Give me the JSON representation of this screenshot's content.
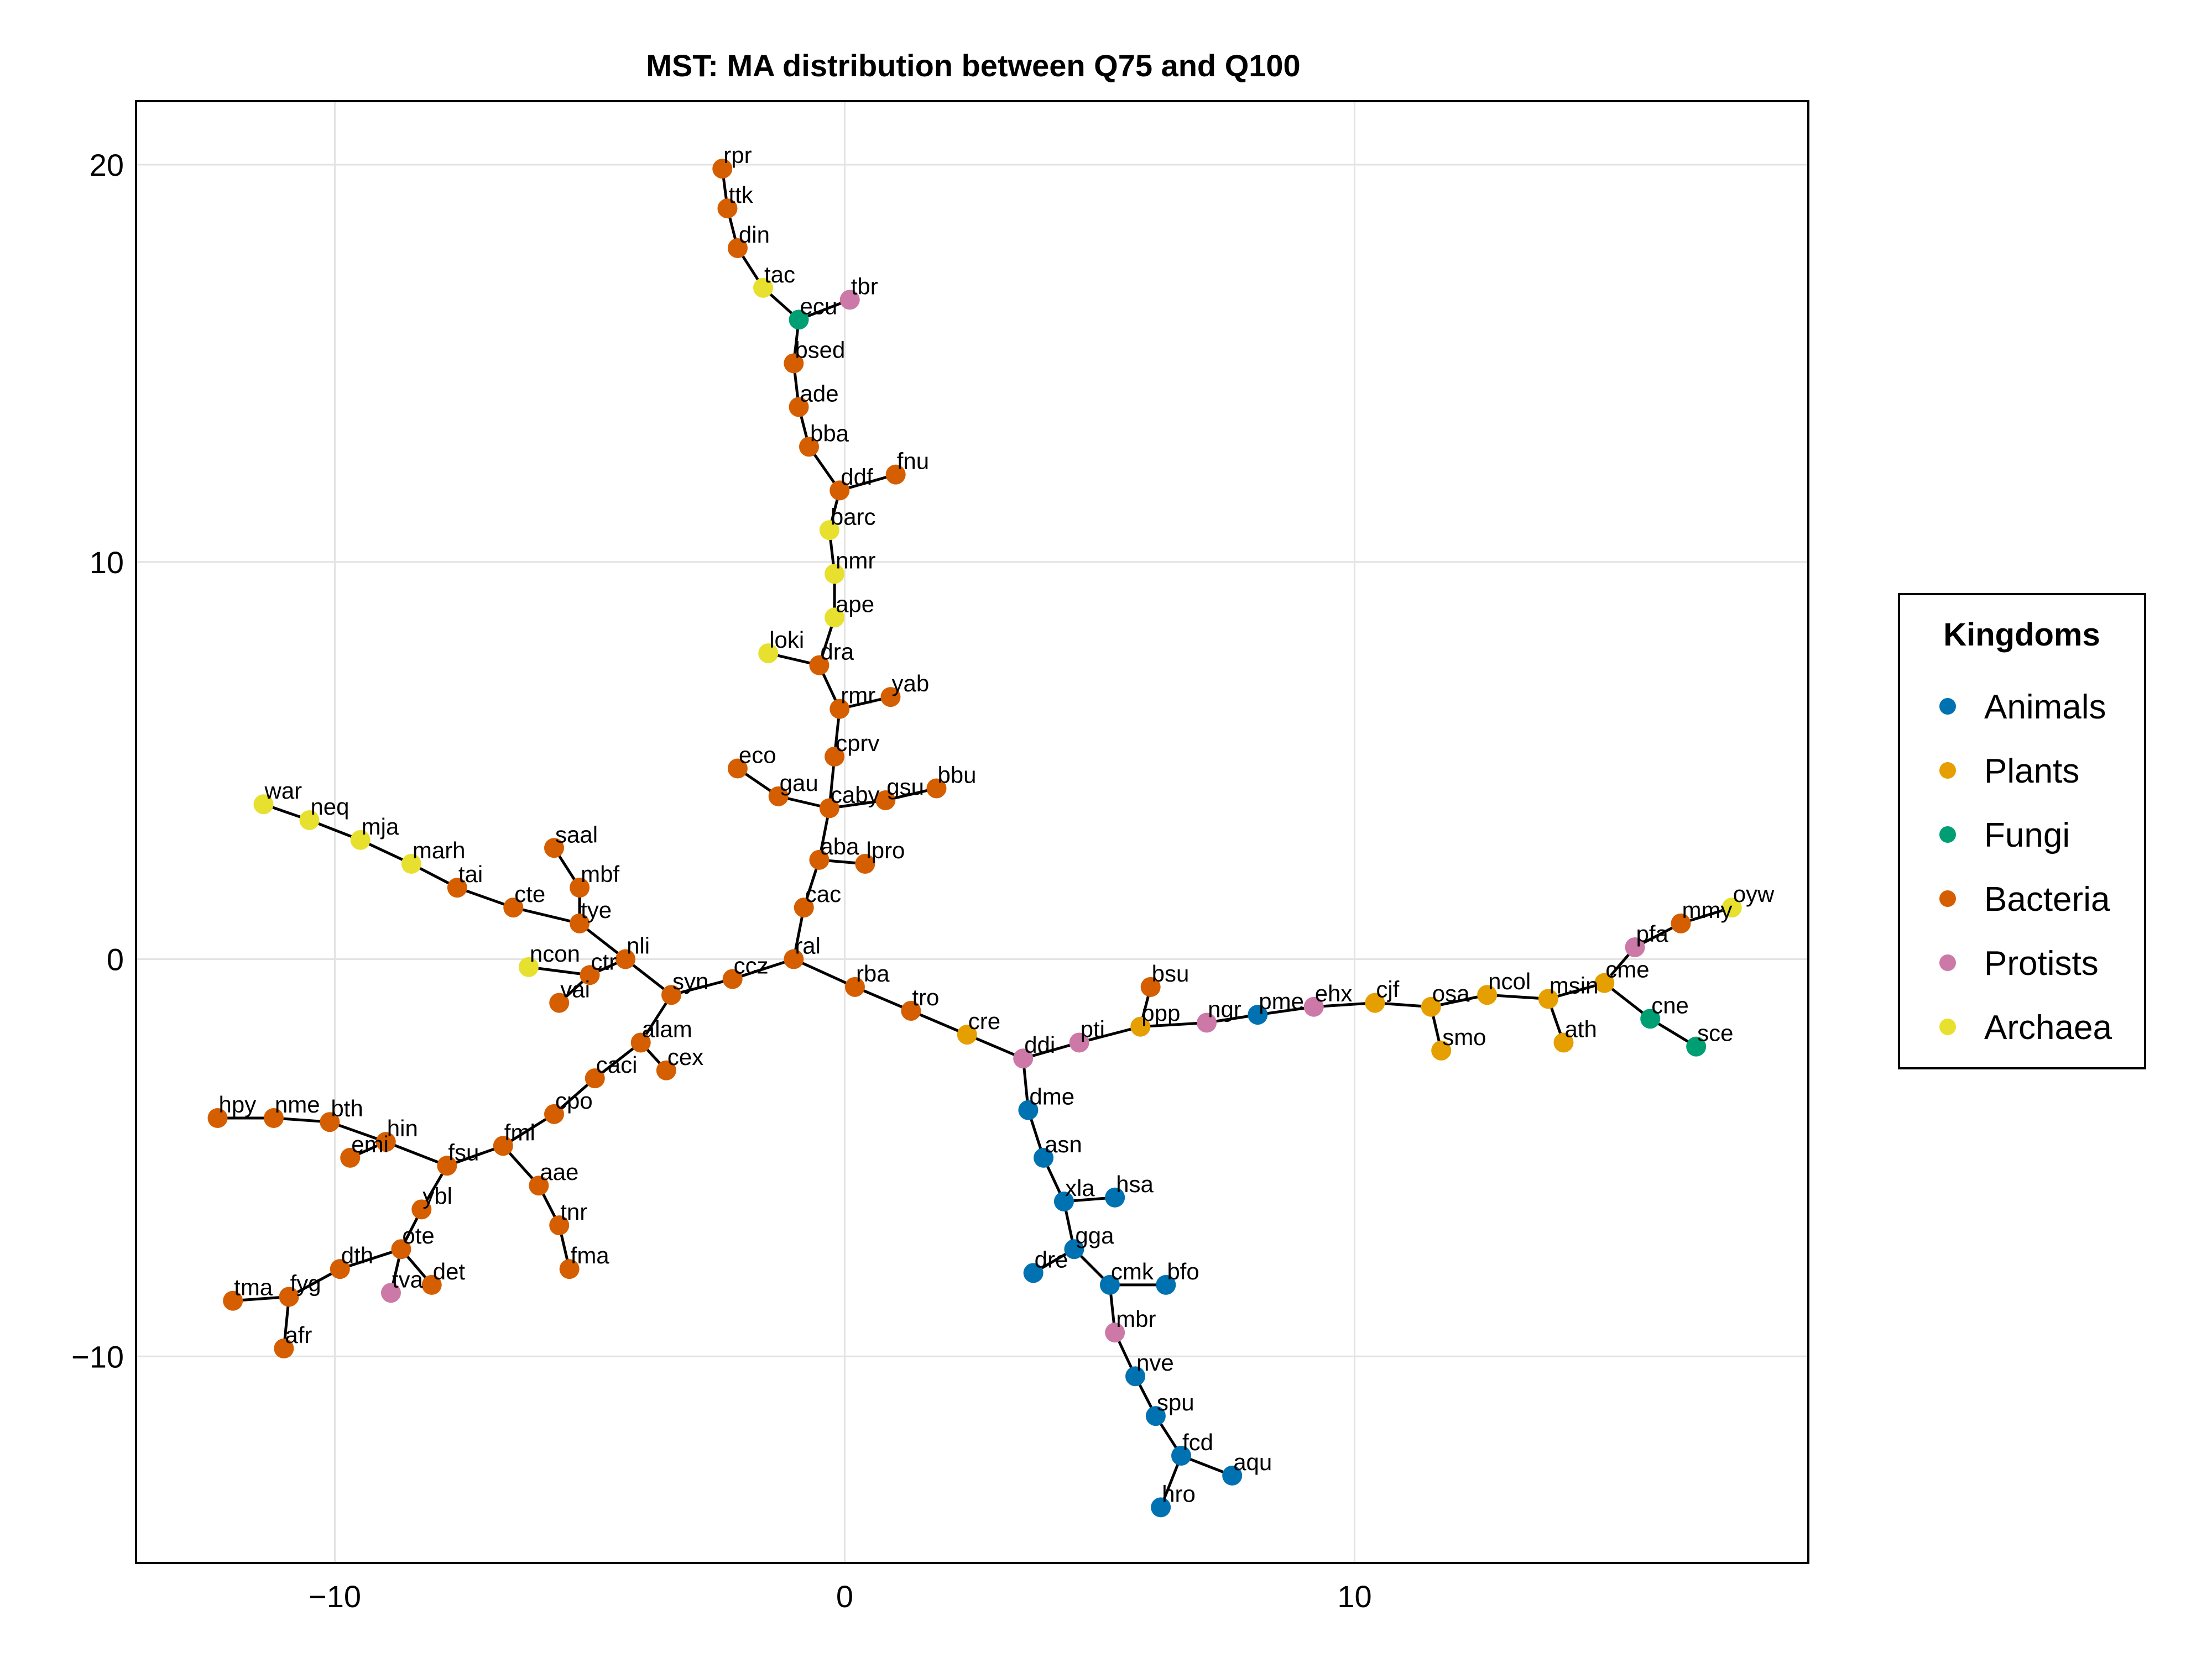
{
  "chart_data": {
    "type": "scatter",
    "title": "MST: MA distribution between Q75 and Q100",
    "xlabel": "",
    "ylabel": "",
    "xlim": [
      -13.9,
      18.9
    ],
    "ylim": [
      -15.2,
      21.6
    ],
    "xticks": [
      -10,
      0,
      10
    ],
    "yticks": [
      -10,
      0,
      10,
      20
    ],
    "xtick_labels": [
      "−10",
      "0",
      "10"
    ],
    "ytick_labels": [
      "−10",
      "0",
      "10",
      "20"
    ],
    "grid": true,
    "legend": {
      "title": "Kingdoms",
      "placement": "right",
      "entries": [
        {
          "name": "Animals",
          "color": "#0072b2"
        },
        {
          "name": "Plants",
          "color": "#e69f00"
        },
        {
          "name": "Fungi",
          "color": "#009e73"
        },
        {
          "name": "Bacteria",
          "color": "#d55e00"
        },
        {
          "name": "Protists",
          "color": "#cc79a7"
        },
        {
          "name": "Archaea",
          "color": "#e8e02e"
        }
      ]
    },
    "nodes": [
      {
        "id": "rpr",
        "x": -2.4,
        "y": 19.9,
        "kingdom": "Bacteria"
      },
      {
        "id": "ttk",
        "x": -2.3,
        "y": 18.9,
        "kingdom": "Bacteria"
      },
      {
        "id": "din",
        "x": -2.1,
        "y": 17.9,
        "kingdom": "Bacteria"
      },
      {
        "id": "tac",
        "x": -1.6,
        "y": 16.9,
        "kingdom": "Archaea"
      },
      {
        "id": "tbr",
        "x": 0.1,
        "y": 16.6,
        "kingdom": "Protists"
      },
      {
        "id": "ecu",
        "x": -0.9,
        "y": 16.1,
        "kingdom": "Fungi"
      },
      {
        "id": "bsed",
        "x": -1.0,
        "y": 15.0,
        "kingdom": "Bacteria"
      },
      {
        "id": "ade",
        "x": -0.9,
        "y": 13.9,
        "kingdom": "Bacteria"
      },
      {
        "id": "bba",
        "x": -0.7,
        "y": 12.9,
        "kingdom": "Bacteria"
      },
      {
        "id": "fnu",
        "x": 1.0,
        "y": 12.2,
        "kingdom": "Bacteria"
      },
      {
        "id": "ddf",
        "x": -0.1,
        "y": 11.8,
        "kingdom": "Bacteria"
      },
      {
        "id": "barc",
        "x": -0.3,
        "y": 10.8,
        "kingdom": "Archaea"
      },
      {
        "id": "nmr",
        "x": -0.2,
        "y": 9.7,
        "kingdom": "Archaea"
      },
      {
        "id": "ape",
        "x": -0.2,
        "y": 8.6,
        "kingdom": "Archaea"
      },
      {
        "id": "loki",
        "x": -1.5,
        "y": 7.7,
        "kingdom": "Archaea"
      },
      {
        "id": "dra",
        "x": -0.5,
        "y": 7.4,
        "kingdom": "Bacteria"
      },
      {
        "id": "yab",
        "x": 0.9,
        "y": 6.6,
        "kingdom": "Bacteria"
      },
      {
        "id": "rmr",
        "x": -0.1,
        "y": 6.3,
        "kingdom": "Bacteria"
      },
      {
        "id": "cprv",
        "x": -0.2,
        "y": 5.1,
        "kingdom": "Bacteria"
      },
      {
        "id": "eco",
        "x": -2.1,
        "y": 4.8,
        "kingdom": "Bacteria"
      },
      {
        "id": "bbu",
        "x": 1.8,
        "y": 4.3,
        "kingdom": "Bacteria"
      },
      {
        "id": "gau",
        "x": -1.3,
        "y": 4.1,
        "kingdom": "Bacteria"
      },
      {
        "id": "gsu",
        "x": 0.8,
        "y": 4.0,
        "kingdom": "Bacteria"
      },
      {
        "id": "caby",
        "x": -0.3,
        "y": 3.8,
        "kingdom": "Bacteria"
      },
      {
        "id": "aba",
        "x": -0.5,
        "y": 2.5,
        "kingdom": "Bacteria"
      },
      {
        "id": "lpro",
        "x": 0.4,
        "y": 2.4,
        "kingdom": "Bacteria"
      },
      {
        "id": "cac",
        "x": -0.8,
        "y": 1.3,
        "kingdom": "Bacteria"
      },
      {
        "id": "ral",
        "x": -1.0,
        "y": 0.0,
        "kingdom": "Bacteria"
      },
      {
        "id": "ccz",
        "x": -2.2,
        "y": -0.5,
        "kingdom": "Bacteria"
      },
      {
        "id": "syn",
        "x": -3.4,
        "y": -0.9,
        "kingdom": "Bacteria"
      },
      {
        "id": "nli",
        "x": -4.3,
        "y": 0.0,
        "kingdom": "Bacteria"
      },
      {
        "id": "tye",
        "x": -5.2,
        "y": 0.9,
        "kingdom": "Bacteria"
      },
      {
        "id": "mbf",
        "x": -5.2,
        "y": 1.8,
        "kingdom": "Bacteria"
      },
      {
        "id": "saal",
        "x": -5.7,
        "y": 2.8,
        "kingdom": "Bacteria"
      },
      {
        "id": "cte",
        "x": -6.5,
        "y": 1.3,
        "kingdom": "Bacteria"
      },
      {
        "id": "tai",
        "x": -7.6,
        "y": 1.8,
        "kingdom": "Bacteria"
      },
      {
        "id": "marh",
        "x": -8.5,
        "y": 2.4,
        "kingdom": "Archaea"
      },
      {
        "id": "mja",
        "x": -9.5,
        "y": 3.0,
        "kingdom": "Archaea"
      },
      {
        "id": "neq",
        "x": -10.5,
        "y": 3.5,
        "kingdom": "Archaea"
      },
      {
        "id": "war",
        "x": -11.4,
        "y": 3.9,
        "kingdom": "Archaea"
      },
      {
        "id": "ncon",
        "x": -6.2,
        "y": -0.2,
        "kingdom": "Archaea"
      },
      {
        "id": "ctr",
        "x": -5.0,
        "y": -0.4,
        "kingdom": "Bacteria"
      },
      {
        "id": "vai",
        "x": -5.6,
        "y": -1.1,
        "kingdom": "Bacteria"
      },
      {
        "id": "alam",
        "x": -4.0,
        "y": -2.1,
        "kingdom": "Bacteria"
      },
      {
        "id": "cex",
        "x": -3.5,
        "y": -2.8,
        "kingdom": "Bacteria"
      },
      {
        "id": "caci",
        "x": -4.9,
        "y": -3.0,
        "kingdom": "Bacteria"
      },
      {
        "id": "cpo",
        "x": -5.7,
        "y": -3.9,
        "kingdom": "Bacteria"
      },
      {
        "id": "fml",
        "x": -6.7,
        "y": -4.7,
        "kingdom": "Bacteria"
      },
      {
        "id": "aae",
        "x": -6.0,
        "y": -5.7,
        "kingdom": "Bacteria"
      },
      {
        "id": "tnr",
        "x": -5.6,
        "y": -6.7,
        "kingdom": "Bacteria"
      },
      {
        "id": "fma",
        "x": -5.4,
        "y": -7.8,
        "kingdom": "Bacteria"
      },
      {
        "id": "fsu",
        "x": -7.8,
        "y": -5.2,
        "kingdom": "Bacteria"
      },
      {
        "id": "hin",
        "x": -9.0,
        "y": -4.6,
        "kingdom": "Bacteria"
      },
      {
        "id": "emi",
        "x": -9.7,
        "y": -5.0,
        "kingdom": "Bacteria"
      },
      {
        "id": "bth",
        "x": -10.1,
        "y": -4.1,
        "kingdom": "Bacteria"
      },
      {
        "id": "nme",
        "x": -11.2,
        "y": -4.0,
        "kingdom": "Bacteria"
      },
      {
        "id": "hpy",
        "x": -12.3,
        "y": -4.0,
        "kingdom": "Bacteria"
      },
      {
        "id": "ybl",
        "x": -8.3,
        "y": -6.3,
        "kingdom": "Bacteria"
      },
      {
        "id": "ote",
        "x": -8.7,
        "y": -7.3,
        "kingdom": "Bacteria"
      },
      {
        "id": "tva",
        "x": -8.9,
        "y": -8.4,
        "kingdom": "Protists"
      },
      {
        "id": "det",
        "x": -8.1,
        "y": -8.2,
        "kingdom": "Bacteria"
      },
      {
        "id": "dth",
        "x": -9.9,
        "y": -7.8,
        "kingdom": "Bacteria"
      },
      {
        "id": "fyg",
        "x": -10.9,
        "y": -8.5,
        "kingdom": "Bacteria"
      },
      {
        "id": "tma",
        "x": -12.0,
        "y": -8.6,
        "kingdom": "Bacteria"
      },
      {
        "id": "afr",
        "x": -11.0,
        "y": -9.8,
        "kingdom": "Bacteria"
      },
      {
        "id": "rba",
        "x": 0.2,
        "y": -0.7,
        "kingdom": "Bacteria"
      },
      {
        "id": "tro",
        "x": 1.3,
        "y": -1.3,
        "kingdom": "Bacteria"
      },
      {
        "id": "cre",
        "x": 2.4,
        "y": -1.9,
        "kingdom": "Plants"
      },
      {
        "id": "ddi",
        "x": 3.5,
        "y": -2.5,
        "kingdom": "Protists"
      },
      {
        "id": "pti",
        "x": 4.6,
        "y": -2.1,
        "kingdom": "Protists"
      },
      {
        "id": "ppp",
        "x": 5.8,
        "y": -1.7,
        "kingdom": "Plants"
      },
      {
        "id": "bsu",
        "x": 6.0,
        "y": -0.7,
        "kingdom": "Bacteria"
      },
      {
        "id": "ngr",
        "x": 7.1,
        "y": -1.6,
        "kingdom": "Protists"
      },
      {
        "id": "pme",
        "x": 8.1,
        "y": -1.4,
        "kingdom": "Animals"
      },
      {
        "id": "ehx",
        "x": 9.2,
        "y": -1.2,
        "kingdom": "Protists"
      },
      {
        "id": "cjf",
        "x": 10.4,
        "y": -1.1,
        "kingdom": "Plants"
      },
      {
        "id": "osa",
        "x": 11.5,
        "y": -1.2,
        "kingdom": "Plants"
      },
      {
        "id": "smo",
        "x": 11.7,
        "y": -2.3,
        "kingdom": "Plants"
      },
      {
        "id": "ncol",
        "x": 12.6,
        "y": -0.9,
        "kingdom": "Plants"
      },
      {
        "id": "msin",
        "x": 13.8,
        "y": -1.0,
        "kingdom": "Plants"
      },
      {
        "id": "ath",
        "x": 14.1,
        "y": -2.1,
        "kingdom": "Plants"
      },
      {
        "id": "cme",
        "x": 14.9,
        "y": -0.6,
        "kingdom": "Plants"
      },
      {
        "id": "pfa",
        "x": 15.5,
        "y": 0.3,
        "kingdom": "Protists"
      },
      {
        "id": "cne",
        "x": 15.8,
        "y": -1.5,
        "kingdom": "Fungi"
      },
      {
        "id": "sce",
        "x": 16.7,
        "y": -2.2,
        "kingdom": "Fungi"
      },
      {
        "id": "mmy",
        "x": 16.4,
        "y": 0.9,
        "kingdom": "Bacteria"
      },
      {
        "id": "oyw",
        "x": 17.4,
        "y": 1.3,
        "kingdom": "Archaea"
      },
      {
        "id": "dme",
        "x": 3.6,
        "y": -3.8,
        "kingdom": "Animals"
      },
      {
        "id": "asn",
        "x": 3.9,
        "y": -5.0,
        "kingdom": "Animals"
      },
      {
        "id": "xla",
        "x": 4.3,
        "y": -6.1,
        "kingdom": "Animals"
      },
      {
        "id": "hsa",
        "x": 5.3,
        "y": -6.0,
        "kingdom": "Animals"
      },
      {
        "id": "gga",
        "x": 4.5,
        "y": -7.3,
        "kingdom": "Animals"
      },
      {
        "id": "dre",
        "x": 3.7,
        "y": -7.9,
        "kingdom": "Animals"
      },
      {
        "id": "cmk",
        "x": 5.2,
        "y": -8.2,
        "kingdom": "Animals"
      },
      {
        "id": "bfo",
        "x": 6.3,
        "y": -8.2,
        "kingdom": "Animals"
      },
      {
        "id": "mbr",
        "x": 5.3,
        "y": -9.4,
        "kingdom": "Protists"
      },
      {
        "id": "nve",
        "x": 5.7,
        "y": -10.5,
        "kingdom": "Animals"
      },
      {
        "id": "spu",
        "x": 6.1,
        "y": -11.5,
        "kingdom": "Animals"
      },
      {
        "id": "fcd",
        "x": 6.6,
        "y": -12.5,
        "kingdom": "Animals"
      },
      {
        "id": "aqu",
        "x": 7.6,
        "y": -13.0,
        "kingdom": "Animals"
      },
      {
        "id": "hro",
        "x": 6.2,
        "y": -13.8,
        "kingdom": "Animals"
      }
    ],
    "edges": [
      [
        "rpr",
        "ttk"
      ],
      [
        "ttk",
        "din"
      ],
      [
        "din",
        "tac"
      ],
      [
        "tac",
        "ecu"
      ],
      [
        "tbr",
        "ecu"
      ],
      [
        "ecu",
        "bsed"
      ],
      [
        "bsed",
        "ade"
      ],
      [
        "ade",
        "bba"
      ],
      [
        "bba",
        "ddf"
      ],
      [
        "ddf",
        "fnu"
      ],
      [
        "ddf",
        "barc"
      ],
      [
        "barc",
        "nmr"
      ],
      [
        "nmr",
        "ape"
      ],
      [
        "ape",
        "dra"
      ],
      [
        "dra",
        "loki"
      ],
      [
        "dra",
        "rmr"
      ],
      [
        "rmr",
        "yab"
      ],
      [
        "rmr",
        "cprv"
      ],
      [
        "cprv",
        "caby"
      ],
      [
        "caby",
        "gau"
      ],
      [
        "gau",
        "eco"
      ],
      [
        "caby",
        "gsu"
      ],
      [
        "gsu",
        "bbu"
      ],
      [
        "caby",
        "aba"
      ],
      [
        "aba",
        "lpro"
      ],
      [
        "aba",
        "cac"
      ],
      [
        "cac",
        "ral"
      ],
      [
        "ral",
        "ccz"
      ],
      [
        "ccz",
        "syn"
      ],
      [
        "syn",
        "nli"
      ],
      [
        "nli",
        "tye"
      ],
      [
        "tye",
        "mbf"
      ],
      [
        "mbf",
        "saal"
      ],
      [
        "tye",
        "cte"
      ],
      [
        "cte",
        "tai"
      ],
      [
        "tai",
        "marh"
      ],
      [
        "marh",
        "mja"
      ],
      [
        "mja",
        "neq"
      ],
      [
        "neq",
        "war"
      ],
      [
        "nli",
        "ctr"
      ],
      [
        "ctr",
        "ncon"
      ],
      [
        "ctr",
        "vai"
      ],
      [
        "syn",
        "alam"
      ],
      [
        "alam",
        "cex"
      ],
      [
        "alam",
        "caci"
      ],
      [
        "caci",
        "cpo"
      ],
      [
        "cpo",
        "fml"
      ],
      [
        "fml",
        "aae"
      ],
      [
        "aae",
        "tnr"
      ],
      [
        "tnr",
        "fma"
      ],
      [
        "fml",
        "fsu"
      ],
      [
        "fsu",
        "hin"
      ],
      [
        "hin",
        "emi"
      ],
      [
        "hin",
        "bth"
      ],
      [
        "bth",
        "nme"
      ],
      [
        "nme",
        "hpy"
      ],
      [
        "fsu",
        "ybl"
      ],
      [
        "ybl",
        "ote"
      ],
      [
        "ote",
        "tva"
      ],
      [
        "ote",
        "det"
      ],
      [
        "ote",
        "dth"
      ],
      [
        "dth",
        "fyg"
      ],
      [
        "fyg",
        "tma"
      ],
      [
        "fyg",
        "afr"
      ],
      [
        "ral",
        "rba"
      ],
      [
        "rba",
        "tro"
      ],
      [
        "tro",
        "cre"
      ],
      [
        "cre",
        "ddi"
      ],
      [
        "ddi",
        "pti"
      ],
      [
        "pti",
        "ppp"
      ],
      [
        "ppp",
        "bsu"
      ],
      [
        "ppp",
        "ngr"
      ],
      [
        "ngr",
        "pme"
      ],
      [
        "pme",
        "ehx"
      ],
      [
        "ehx",
        "cjf"
      ],
      [
        "cjf",
        "osa"
      ],
      [
        "osa",
        "smo"
      ],
      [
        "osa",
        "ncol"
      ],
      [
        "ncol",
        "msin"
      ],
      [
        "msin",
        "ath"
      ],
      [
        "msin",
        "cme"
      ],
      [
        "cme",
        "pfa"
      ],
      [
        "pfa",
        "mmy"
      ],
      [
        "mmy",
        "oyw"
      ],
      [
        "cme",
        "cne"
      ],
      [
        "cne",
        "sce"
      ],
      [
        "ddi",
        "dme"
      ],
      [
        "dme",
        "asn"
      ],
      [
        "asn",
        "xla"
      ],
      [
        "xla",
        "hsa"
      ],
      [
        "xla",
        "gga"
      ],
      [
        "gga",
        "dre"
      ],
      [
        "gga",
        "cmk"
      ],
      [
        "cmk",
        "bfo"
      ],
      [
        "cmk",
        "mbr"
      ],
      [
        "mbr",
        "nve"
      ],
      [
        "nve",
        "spu"
      ],
      [
        "spu",
        "fcd"
      ],
      [
        "fcd",
        "aqu"
      ],
      [
        "fcd",
        "hro"
      ]
    ]
  }
}
